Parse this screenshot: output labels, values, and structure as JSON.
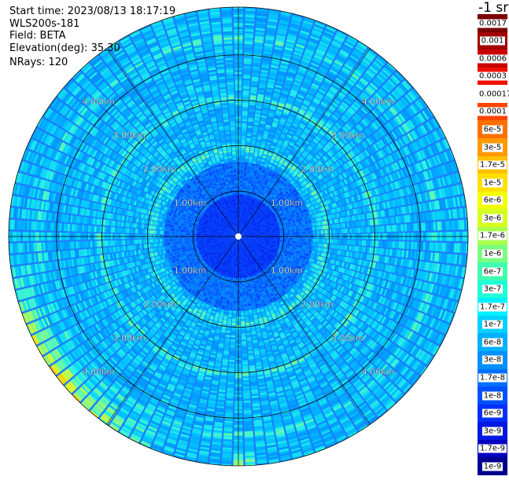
{
  "info": {
    "start_time": {
      "label": "Start time:",
      "value": "2023/08/13 18:17:19"
    },
    "instrument": "WLS200s-181",
    "field": {
      "label": "Field:",
      "value": "BETA"
    },
    "elevation": {
      "label": "Elevation(deg):",
      "value": "35.30"
    },
    "nrays": {
      "label": "NRays:",
      "value": "120"
    }
  },
  "colorbar": {
    "unit": "-1 sr",
    "entries": [
      {
        "label": "0.0017",
        "color": "#7a0000"
      },
      {
        "label": "0.001",
        "color": "#a00000"
      },
      {
        "label": "0.0006",
        "color": "#c80000"
      },
      {
        "label": "0.0003",
        "color": "#ee1100"
      },
      {
        "label": "0.00017",
        "color": "#ffffff"
      },
      {
        "label": "0.0001",
        "color": "#ff4400"
      },
      {
        "label": "6e-5",
        "color": "#ff7000"
      },
      {
        "label": "3e-5",
        "color": "#ff9900"
      },
      {
        "label": "1.7e-5",
        "color": "#ffc000"
      },
      {
        "label": "1e-5",
        "color": "#ffe000"
      },
      {
        "label": "6e-6",
        "color": "#f4ff00"
      },
      {
        "label": "3e-6",
        "color": "#d4ff20"
      },
      {
        "label": "1.7e-6",
        "color": "#a8ff50"
      },
      {
        "label": "1e-6",
        "color": "#78ff80"
      },
      {
        "label": "6e-7",
        "color": "#40ffb0"
      },
      {
        "label": "3e-7",
        "color": "#20ffd8"
      },
      {
        "label": "1.7e-7",
        "color": "#00f0ff"
      },
      {
        "label": "1e-7",
        "color": "#00d0ff"
      },
      {
        "label": "6e-8",
        "color": "#00b0ff"
      },
      {
        "label": "3e-8",
        "color": "#0090ff"
      },
      {
        "label": "1.7e-8",
        "color": "#0070ff"
      },
      {
        "label": "1e-8",
        "color": "#0050ff"
      },
      {
        "label": "6e-9",
        "color": "#0030ff"
      },
      {
        "label": "3e-9",
        "color": "#0018e0"
      },
      {
        "label": "1.7e-9",
        "color": "#0000c0"
      },
      {
        "label": "1e-9",
        "color": "#000090"
      }
    ]
  },
  "chart_data": {
    "type": "heatmap",
    "projection": "polar (PPI scan)",
    "field": "BETA",
    "elevation_deg": 35.3,
    "n_rays": 120,
    "range_rings": [
      {
        "label": "1.00km",
        "value": 1.0
      },
      {
        "label": "2.00km",
        "value": 2.0
      },
      {
        "label": "3.00km",
        "value": 3.0
      },
      {
        "label": "4.00km",
        "value": 4.0
      }
    ],
    "max_horizontal_range_km": 5.05,
    "colormap": "jet (log scale)",
    "color_scale": {
      "min": "1e-9",
      "max": "0.0017",
      "scale": "log"
    },
    "dominant_values": {
      "inner_1km": "1e-9 to 1e-8 (dark blue)",
      "1km_to_4km": "1.7e-8 to 1.7e-7 (blue to cyan)",
      "outer_edge_southwest": "up to 1e-5 to 3e-5 (yellow/orange)"
    },
    "highlight_rings_km": [
      1.9,
      3.0,
      4.3
    ]
  },
  "colors": {
    "ring_line": "#000000",
    "ray_gap": "#ffffff",
    "background": "#ffffff"
  }
}
